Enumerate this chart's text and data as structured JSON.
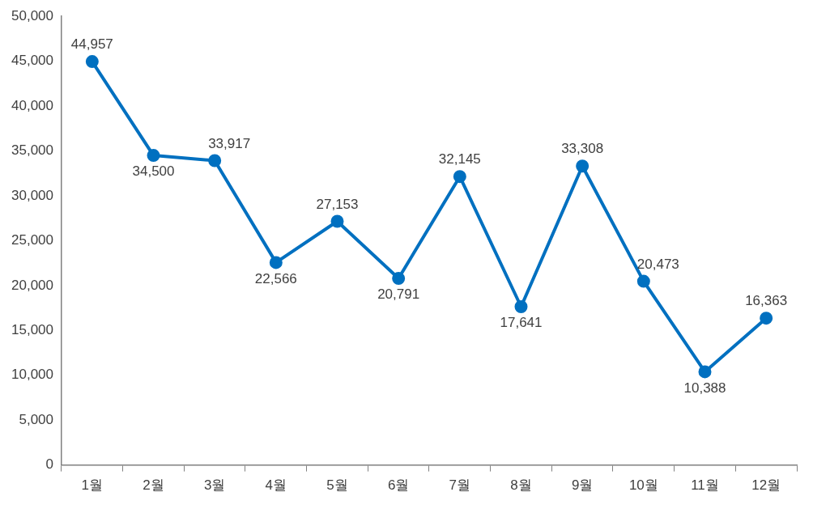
{
  "chart_data": {
    "type": "line",
    "categories": [
      "1월",
      "2월",
      "3월",
      "4월",
      "5월",
      "6월",
      "7월",
      "8월",
      "9월",
      "10월",
      "11월",
      "12월"
    ],
    "series": [
      {
        "color": "#0070c0",
        "values": [
          44957,
          34500,
          33917,
          22566,
          27153,
          20791,
          32145,
          17641,
          33308,
          20473,
          10388,
          16363
        ],
        "value_labels": [
          "44,957",
          "34,500",
          "33,917",
          "22,566",
          "27,153",
          "20,791",
          "32,145",
          "17,641",
          "33,308",
          "20,473",
          "10,388",
          "16,363"
        ]
      }
    ],
    "ylim": [
      0,
      50000
    ],
    "yticks": [
      {
        "value": 0,
        "label": "0"
      },
      {
        "value": 5000,
        "label": "5,000"
      },
      {
        "value": 10000,
        "label": "10,000"
      },
      {
        "value": 15000,
        "label": "15,000"
      },
      {
        "value": 20000,
        "label": "20,000"
      },
      {
        "value": 25000,
        "label": "25,000"
      },
      {
        "value": 30000,
        "label": "30,000"
      },
      {
        "value": 35000,
        "label": "35,000"
      },
      {
        "value": 40000,
        "label": "40,000"
      },
      {
        "value": 45000,
        "label": "45,000"
      },
      {
        "value": 50000,
        "label": "50,000"
      }
    ],
    "grid": false,
    "legend": false,
    "marker": "circle",
    "line_style": "solid"
  }
}
